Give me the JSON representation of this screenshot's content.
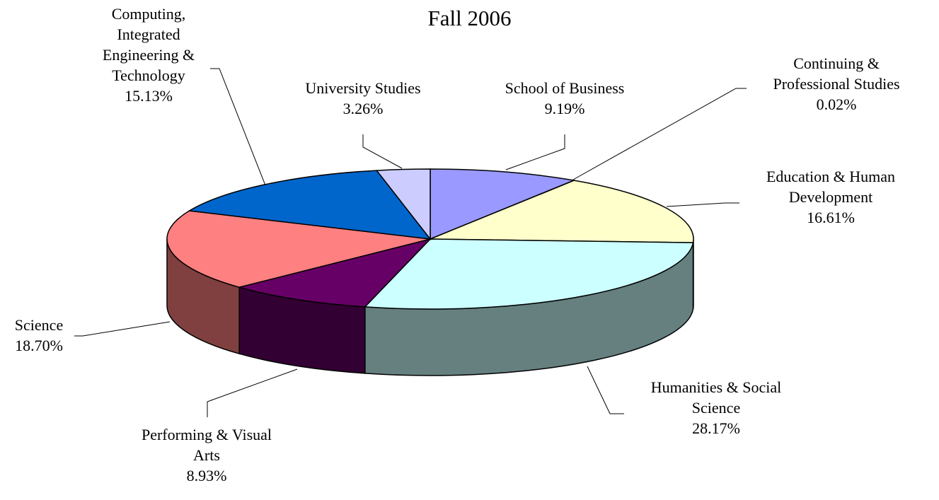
{
  "chart_data": {
    "type": "pie",
    "title": "Fall 2006",
    "categories": [
      "School of Business",
      "Continuing & Professional Studies",
      "Education & Human Development",
      "Humanities & Social Science",
      "Performing & Visual Arts",
      "Science",
      "Computing, Integrated Engineering & Technology",
      "University Studies"
    ],
    "values": [
      9.19,
      0.02,
      16.61,
      28.17,
      8.93,
      18.7,
      15.13,
      3.26
    ],
    "value_labels": [
      "9.19%",
      "0.02%",
      "16.61%",
      "28.17%",
      "8.93%",
      "18.70%",
      "15.13%",
      "3.26%"
    ],
    "colors": [
      "#9999ff",
      "#993366",
      "#ffffcc",
      "#ccffff",
      "#660066",
      "#ff8080",
      "#0066cc",
      "#ccccff"
    ]
  }
}
